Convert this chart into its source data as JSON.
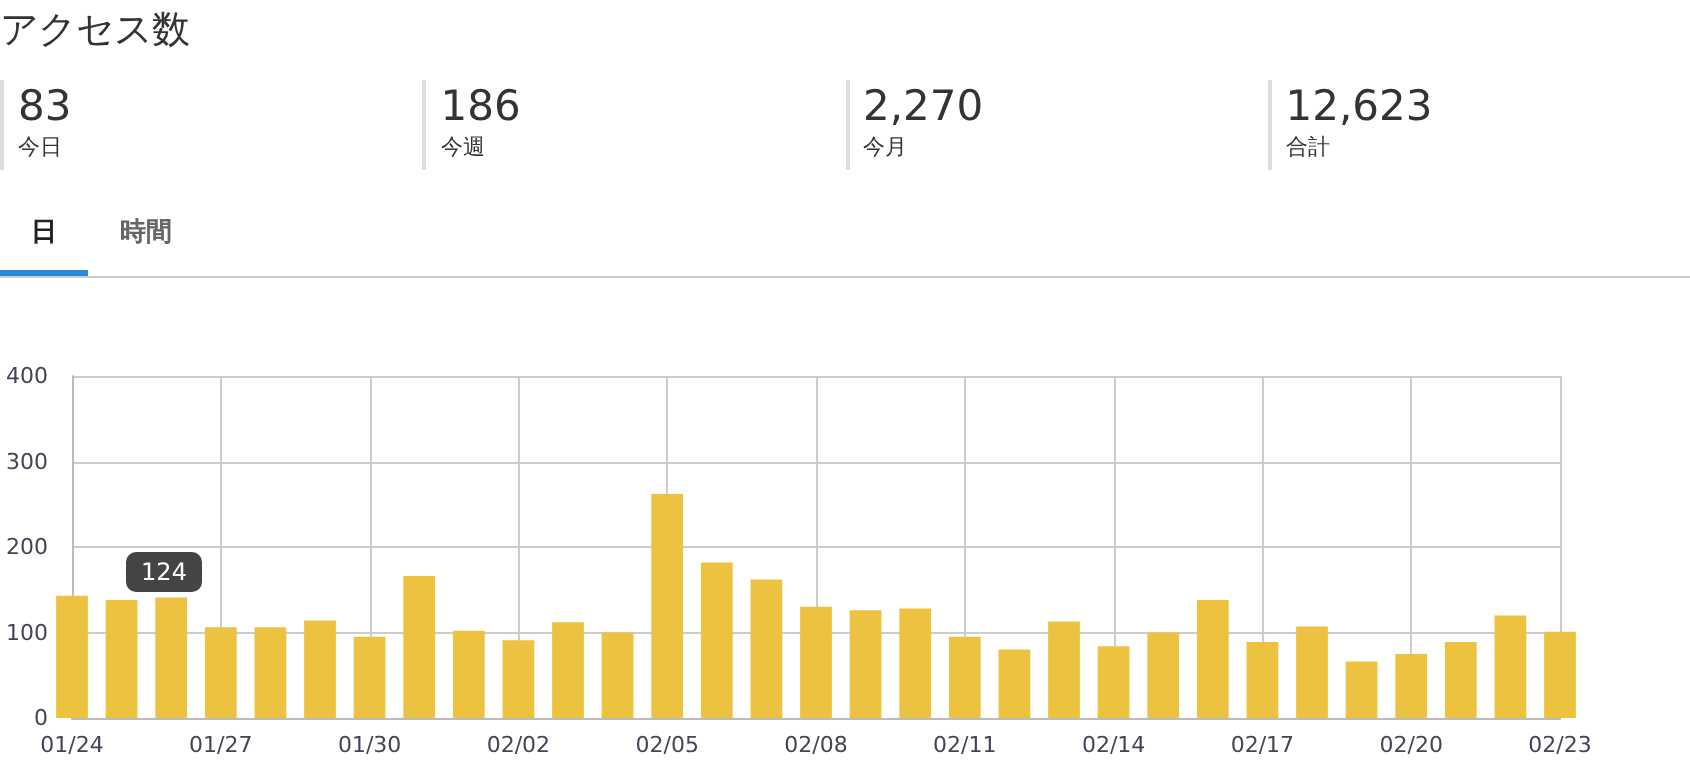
{
  "chart_data": [
    {
      "type": "other",
      "title": "アクセス数",
      "annotations": [
        "83",
        "今日",
        "186",
        "今週",
        "2,270",
        "今月",
        "12,623",
        "合計",
        "日",
        "時間"
      ]
    },
    {
      "type": "bar",
      "categories": [
        "01/24",
        null,
        null,
        "01/27",
        null,
        null,
        "01/30",
        null,
        null,
        "02/02",
        null,
        null,
        "02/05",
        null,
        null,
        "02/08",
        null,
        null,
        "02/11",
        null,
        null,
        "02/14",
        null,
        null,
        "02/17",
        null,
        null,
        "02/20",
        null,
        null,
        "02/23"
      ],
      "values": [
        143,
        138,
        141,
        106,
        106,
        114,
        95,
        166,
        102,
        91,
        112,
        100,
        262,
        182,
        162,
        130,
        126,
        128,
        95,
        80,
        113,
        84,
        100,
        138,
        89,
        107,
        66,
        75,
        89,
        120,
        101
      ],
      "color": "#ecc240",
      "ylim": [
        0,
        400
      ],
      "yticks": [
        0,
        100,
        200,
        300,
        400
      ],
      "grid": true,
      "annotations": [
        "124"
      ]
    }
  ]
}
